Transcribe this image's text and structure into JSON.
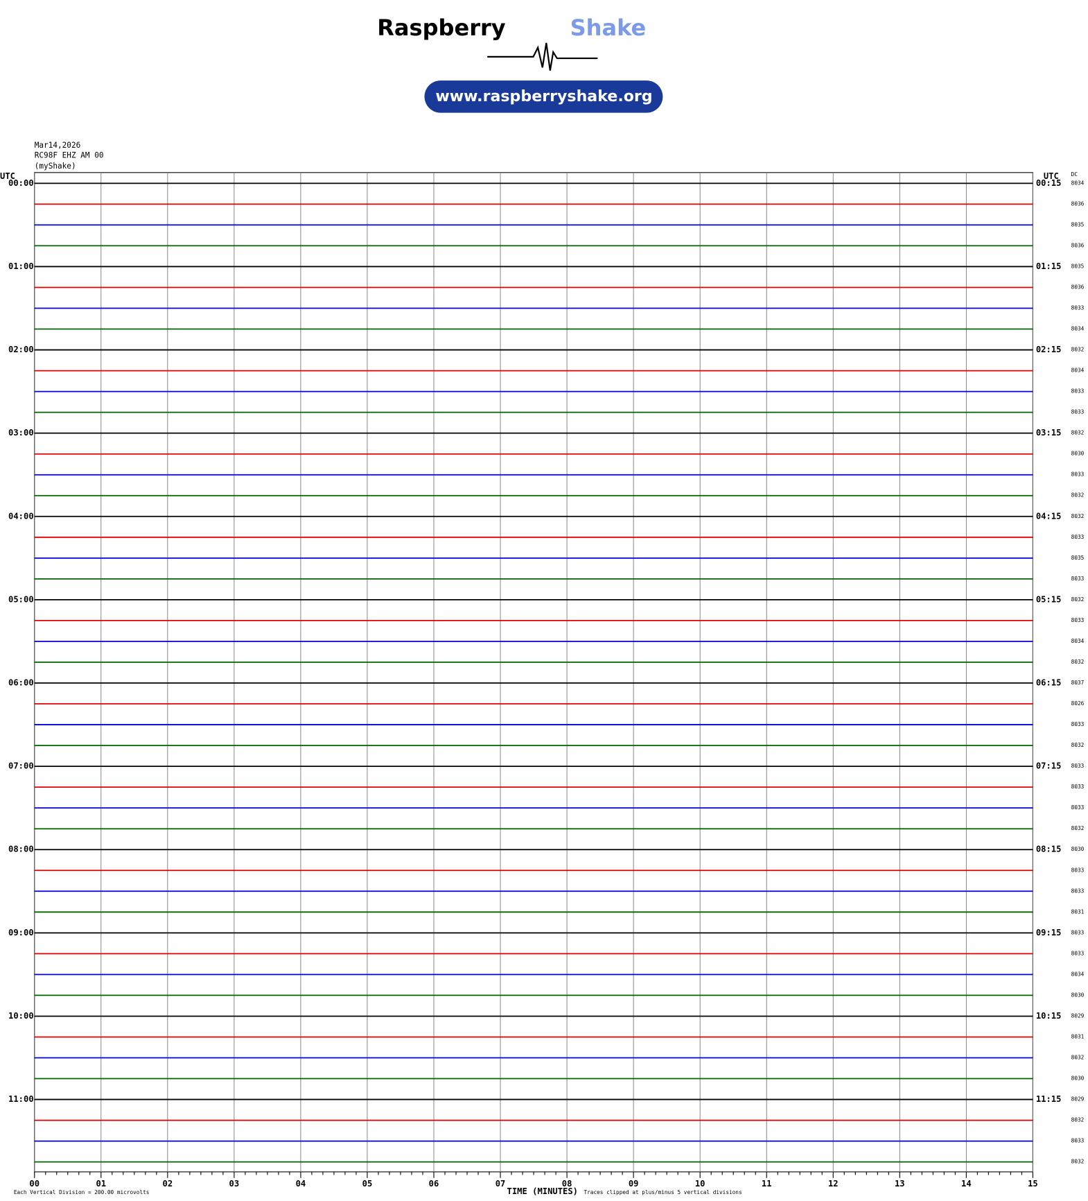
{
  "header": {
    "brand_1": "Raspberry",
    "brand_2": "Shake",
    "url": "www.raspberryshake.org"
  },
  "station": {
    "date": "Mar14,2026",
    "channel": "RC98F EHZ AM 00",
    "network": "(myShake)"
  },
  "utc_left": "UTC",
  "utc_right": "UTC",
  "dc_label": "DC",
  "trace_colors": [
    "#000000",
    "#e00000",
    "#0000e0",
    "#006400"
  ],
  "left_labels": [
    "00:00",
    "01:00",
    "02:00",
    "03:00",
    "04:00",
    "05:00",
    "06:00",
    "07:00",
    "08:00",
    "09:00",
    "10:00",
    "11:00"
  ],
  "right_labels": [
    "00:15",
    "01:15",
    "02:15",
    "03:15",
    "04:15",
    "05:15",
    "06:15",
    "07:15",
    "08:15",
    "09:15",
    "10:15",
    "11:15"
  ],
  "dc_values": [
    8034,
    8036,
    8035,
    8036,
    8035,
    8036,
    8033,
    8034,
    8032,
    8034,
    8033,
    8033,
    8032,
    8030,
    8033,
    8032,
    8032,
    8033,
    8035,
    8033,
    8032,
    8033,
    8034,
    8032,
    8037,
    8026,
    8033,
    8032,
    8033,
    8033,
    8033,
    8032,
    8030,
    8033,
    8033,
    8031,
    8033,
    8033,
    8034,
    8030,
    8029,
    8031,
    8032,
    8030,
    8029,
    8032,
    8033,
    8032
  ],
  "x_ticks": [
    "00",
    "01",
    "02",
    "03",
    "04",
    "05",
    "06",
    "07",
    "08",
    "09",
    "10",
    "11",
    "12",
    "13",
    "14",
    "15"
  ],
  "x_label": "TIME (MINUTES)",
  "footer_left": "Each Vertical Division =  200.00 microvolts",
  "footer_right": "Traces clipped at plus/minus 5 vertical divisions"
}
